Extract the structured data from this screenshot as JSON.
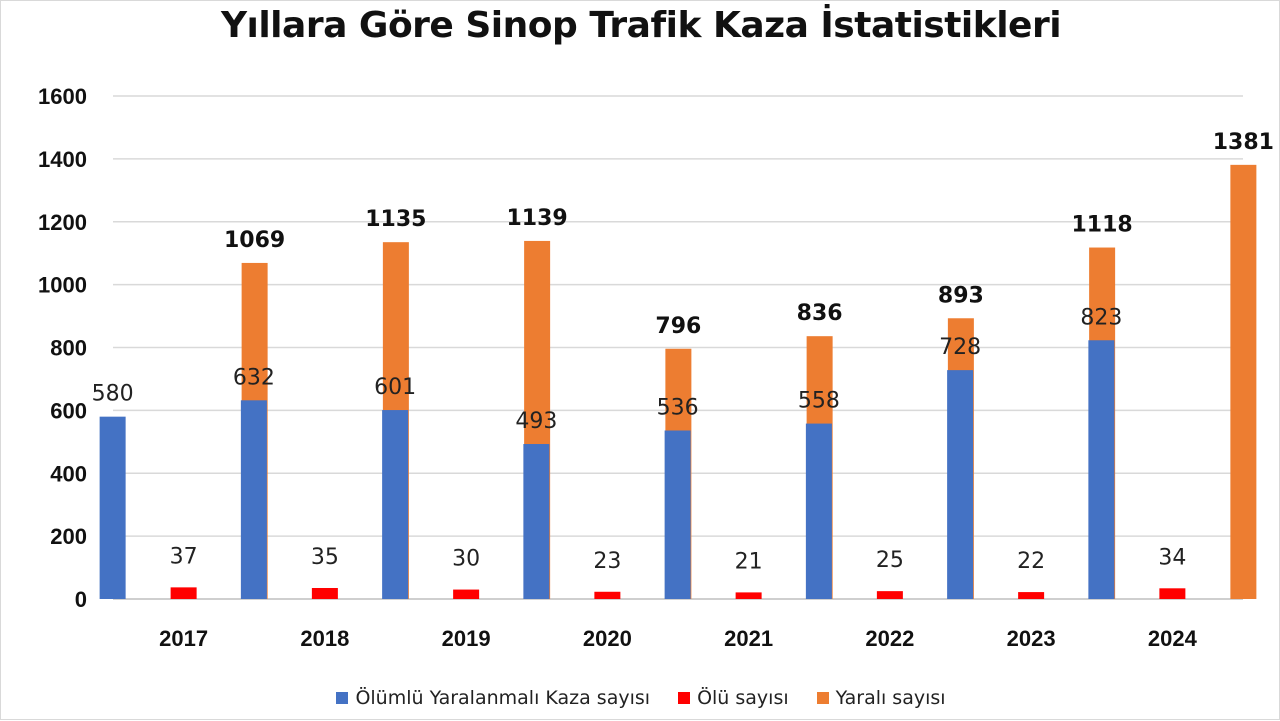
{
  "chart_data": {
    "type": "bar",
    "title": "Yıllara Göre Sinop Trafik Kaza İstatistikleri",
    "categories": [
      "2017",
      "2018",
      "2019",
      "2020",
      "2021",
      "2022",
      "2023",
      "2024"
    ],
    "series": [
      {
        "name": "Ölümlü Yaralanmalı Kaza sayısı",
        "color": "#4472C4",
        "label_style": "plain",
        "values": [
          580,
          632,
          601,
          493,
          536,
          558,
          728,
          823
        ]
      },
      {
        "name": "Ölü sayısı",
        "color": "#FF0000",
        "label_style": "plain",
        "values": [
          37,
          35,
          30,
          23,
          21,
          25,
          22,
          34
        ]
      },
      {
        "name": "Yaralı sayısı",
        "color": "#ED7D31",
        "label_style": "bold",
        "values": [
          1069,
          1135,
          1139,
          796,
          836,
          893,
          1118,
          1381
        ]
      }
    ],
    "ylim": [
      0,
      1600
    ],
    "yticks": [
      0,
      200,
      400,
      600,
      800,
      1000,
      1200,
      1400,
      1600
    ],
    "grid": true,
    "legend_position": "bottom"
  }
}
